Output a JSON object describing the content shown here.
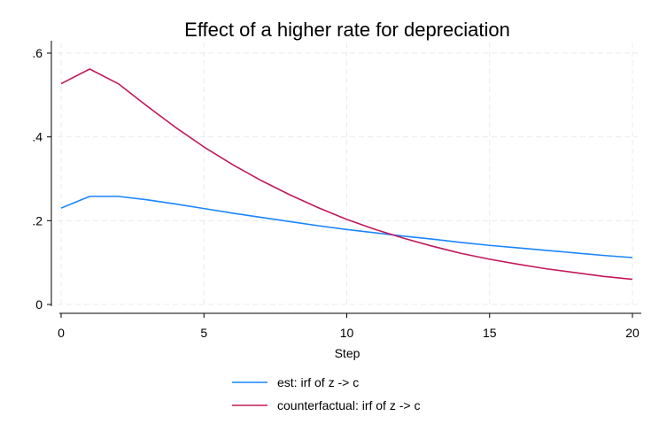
{
  "chart_data": {
    "type": "line",
    "title": "Effect of a higher rate for depreciation",
    "xlabel": "Step",
    "ylabel": "",
    "xlim": [
      0,
      20
    ],
    "ylim": [
      0,
      0.6
    ],
    "x_ticks": [
      0,
      5,
      10,
      15,
      20
    ],
    "x_tick_labels": [
      "0",
      "5",
      "10",
      "15",
      "20"
    ],
    "y_ticks": [
      0,
      0.2,
      0.4,
      0.6
    ],
    "y_tick_labels": [
      "0",
      ".2",
      ".4",
      ".6"
    ],
    "grid": true,
    "legend_position": "bottom",
    "x": [
      0,
      1,
      2,
      3,
      4,
      5,
      6,
      7,
      8,
      9,
      10,
      11,
      12,
      13,
      14,
      15,
      16,
      17,
      18,
      19,
      20
    ],
    "series": [
      {
        "name": "est: irf of z -> c",
        "color": "#1a85ff",
        "values": [
          0.23,
          0.258,
          0.258,
          0.25,
          0.24,
          0.229,
          0.218,
          0.208,
          0.198,
          0.188,
          0.179,
          0.171,
          0.163,
          0.156,
          0.148,
          0.141,
          0.135,
          0.129,
          0.123,
          0.117,
          0.112
        ]
      },
      {
        "name": "counterfactual: irf of z -> c",
        "color": "#c2185b",
        "values": [
          0.527,
          0.562,
          0.527,
          0.474,
          0.423,
          0.376,
          0.334,
          0.296,
          0.262,
          0.231,
          0.203,
          0.179,
          0.158,
          0.139,
          0.122,
          0.108,
          0.096,
          0.085,
          0.076,
          0.067,
          0.06
        ]
      }
    ]
  }
}
